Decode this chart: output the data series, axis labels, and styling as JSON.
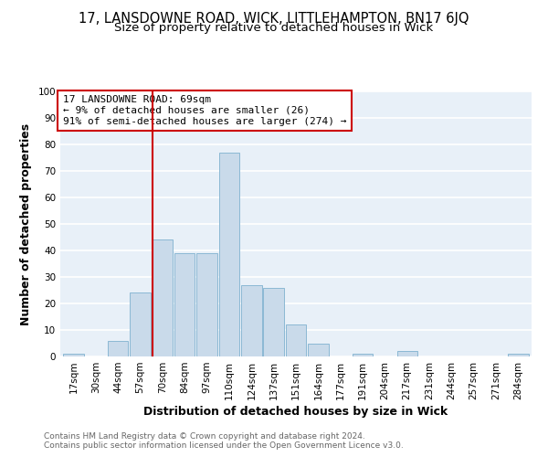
{
  "title": "17, LANSDOWNE ROAD, WICK, LITTLEHAMPTON, BN17 6JQ",
  "subtitle": "Size of property relative to detached houses in Wick",
  "xlabel": "Distribution of detached houses by size in Wick",
  "ylabel": "Number of detached properties",
  "bar_labels": [
    "17sqm",
    "30sqm",
    "44sqm",
    "57sqm",
    "70sqm",
    "84sqm",
    "97sqm",
    "110sqm",
    "124sqm",
    "137sqm",
    "151sqm",
    "164sqm",
    "177sqm",
    "191sqm",
    "204sqm",
    "217sqm",
    "231sqm",
    "244sqm",
    "257sqm",
    "271sqm",
    "284sqm"
  ],
  "bar_values": [
    1,
    0,
    6,
    24,
    44,
    39,
    39,
    77,
    27,
    26,
    12,
    5,
    0,
    1,
    0,
    2,
    0,
    0,
    0,
    0,
    1
  ],
  "bar_color": "#c9daea",
  "bar_edge_color": "#8bb8d4",
  "ylim": [
    0,
    100
  ],
  "yticks": [
    0,
    10,
    20,
    30,
    40,
    50,
    60,
    70,
    80,
    90,
    100
  ],
  "vline_x_index": 4,
  "vline_color": "#cc0000",
  "annotation_box_text": "17 LANSDOWNE ROAD: 69sqm\n← 9% of detached houses are smaller (26)\n91% of semi-detached houses are larger (274) →",
  "annotation_box_color": "#cc0000",
  "annotation_text_color": "#000000",
  "footer_line1": "Contains HM Land Registry data © Crown copyright and database right 2024.",
  "footer_line2": "Contains public sector information licensed under the Open Government Licence v3.0.",
  "bg_color": "#ffffff",
  "plot_bg_color": "#e8f0f8",
  "grid_color": "#ffffff",
  "title_fontsize": 10.5,
  "subtitle_fontsize": 9.5,
  "axis_label_fontsize": 9,
  "tick_fontsize": 7.5,
  "footer_fontsize": 6.5
}
